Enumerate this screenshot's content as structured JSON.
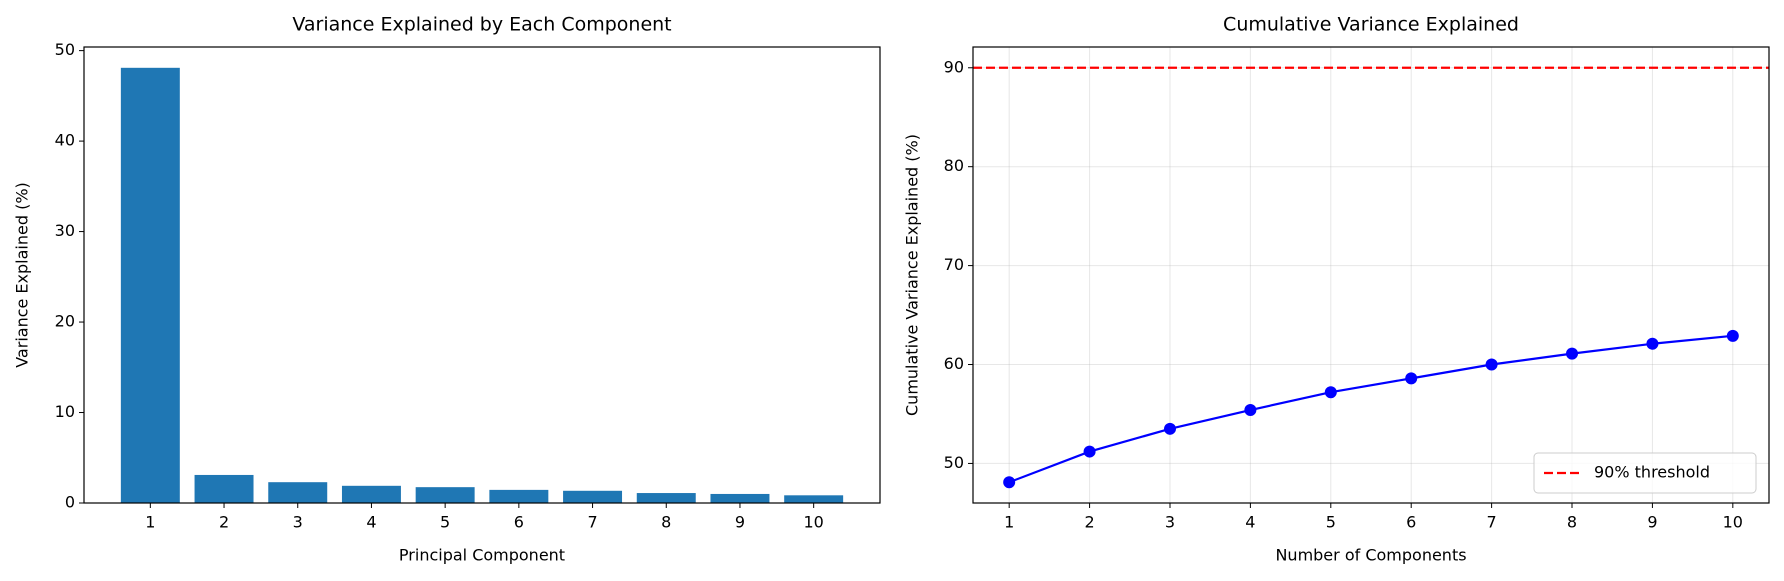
{
  "chart_data": [
    {
      "type": "bar",
      "title": "Variance Explained by Each Component",
      "x_label": "Principal Component",
      "y_label": "Variance Explained (%)",
      "x": [
        1,
        2,
        3,
        4,
        5,
        6,
        7,
        8,
        9,
        10
      ],
      "values": [
        48.1,
        3.1,
        2.3,
        1.9,
        1.75,
        1.45,
        1.35,
        1.1,
        1.0,
        0.85
      ],
      "color": "#1f77b4",
      "bar_width": 0.8,
      "xlim": [
        0.1,
        10.9
      ],
      "xticks": [
        1,
        2,
        3,
        4,
        5,
        6,
        7,
        8,
        9,
        10
      ],
      "ylim": [
        0,
        50.4
      ],
      "yticks": [
        0,
        10,
        20,
        30,
        40,
        50
      ],
      "grid": false
    },
    {
      "type": "line",
      "title": "Cumulative Variance Explained",
      "x_label": "Number of Components",
      "y_label": "Cumulative Variance Explained (%)",
      "x": [
        1,
        2,
        3,
        4,
        5,
        6,
        7,
        8,
        9,
        10
      ],
      "series": [
        {
          "color": "#0000ff",
          "marker": "o",
          "values": [
            48.1,
            51.2,
            53.5,
            55.4,
            57.2,
            58.6,
            60.0,
            61.1,
            62.1,
            62.9
          ]
        }
      ],
      "hline": {
        "value": 90,
        "name": "90% threshold",
        "color": "#ff0000"
      },
      "xlim": [
        0.55,
        10.45
      ],
      "xticks": [
        1,
        2,
        3,
        4,
        5,
        6,
        7,
        8,
        9,
        10
      ],
      "ylim": [
        46,
        92.1
      ],
      "yticks": [
        50,
        60,
        70,
        80,
        90
      ],
      "grid": true,
      "legend": "lower right"
    }
  ]
}
